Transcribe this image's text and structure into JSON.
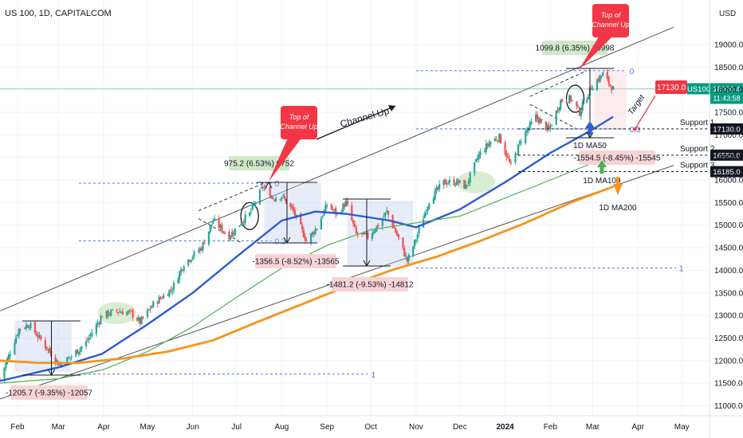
{
  "header": {
    "title": "US 100, 1D, CAPITALCOM"
  },
  "axis": {
    "currency": "USD"
  },
  "price_tag": {
    "symbol": "US100",
    "price": "18020.4",
    "countdown": "11:43:58"
  },
  "colors": {
    "up": "#26a69a",
    "down": "#ef5350",
    "ma50": "#2a5bd7",
    "ma100": "#4caf50",
    "ma200": "#f7931a",
    "callout": "#f23645"
  },
  "chart_data": {
    "type": "candlestick",
    "title": "US 100, 1D, CAPITALCOM",
    "ylabel": "USD",
    "ylim": [
      10900,
      19700
    ],
    "xlim": [
      "2023-01-20",
      "2024-05-20"
    ],
    "x_ticks": [
      {
        "label": "Feb",
        "date": "2023-02-01"
      },
      {
        "label": "Mar",
        "date": "2023-03-01"
      },
      {
        "label": "Apr",
        "date": "2023-04-01"
      },
      {
        "label": "May",
        "date": "2023-05-01"
      },
      {
        "label": "Jun",
        "date": "2023-06-01"
      },
      {
        "label": "Jul",
        "date": "2023-07-01"
      },
      {
        "label": "Aug",
        "date": "2023-08-01"
      },
      {
        "label": "Sep",
        "date": "2023-09-01"
      },
      {
        "label": "Oct",
        "date": "2023-10-01"
      },
      {
        "label": "Nov",
        "date": "2023-11-01"
      },
      {
        "label": "Dec",
        "date": "2023-12-01"
      },
      {
        "label": "2024",
        "date": "2024-01-01"
      },
      {
        "label": "Feb",
        "date": "2024-02-01"
      },
      {
        "label": "Mar",
        "date": "2024-03-01"
      },
      {
        "label": "Apr",
        "date": "2024-04-01"
      },
      {
        "label": "May",
        "date": "2024-05-01"
      }
    ],
    "y_ticks": [
      11000,
      11500,
      12000,
      12500,
      13000,
      13500,
      14000,
      14500,
      15000,
      15500,
      16000,
      16500,
      17000,
      17500,
      18000,
      18500,
      19000
    ],
    "price_path": [
      [
        "2023-01-20",
        11600
      ],
      [
        "2023-02-02",
        12700
      ],
      [
        "2023-02-09",
        12800
      ],
      [
        "2023-02-16",
        12500
      ],
      [
        "2023-02-23",
        12200
      ],
      [
        "2023-03-02",
        11900
      ],
      [
        "2023-03-10",
        12100
      ],
      [
        "2023-03-20",
        12400
      ],
      [
        "2023-03-31",
        13000
      ],
      [
        "2023-04-10",
        13100
      ],
      [
        "2023-04-20",
        13050
      ],
      [
        "2023-04-26",
        12850
      ],
      [
        "2023-05-05",
        13250
      ],
      [
        "2023-05-18",
        13600
      ],
      [
        "2023-05-26",
        14150
      ],
      [
        "2023-06-07",
        14500
      ],
      [
        "2023-06-15",
        15100
      ],
      [
        "2023-06-26",
        14750
      ],
      [
        "2023-07-05",
        15100
      ],
      [
        "2023-07-10",
        15250
      ],
      [
        "2023-07-19",
        15850
      ],
      [
        "2023-07-26",
        15600
      ],
      [
        "2023-08-01",
        15650
      ],
      [
        "2023-08-09",
        15300
      ],
      [
        "2023-08-18",
        14650
      ],
      [
        "2023-08-25",
        14950
      ],
      [
        "2023-09-01",
        15450
      ],
      [
        "2023-09-08",
        15250
      ],
      [
        "2023-09-14",
        15500
      ],
      [
        "2023-09-21",
        14800
      ],
      [
        "2023-09-29",
        14750
      ],
      [
        "2023-10-06",
        15000
      ],
      [
        "2023-10-12",
        15300
      ],
      [
        "2023-10-20",
        14700
      ],
      [
        "2023-10-26",
        14200
      ],
      [
        "2023-11-01",
        14700
      ],
      [
        "2023-11-10",
        15550
      ],
      [
        "2023-11-20",
        15950
      ],
      [
        "2023-11-30",
        15950
      ],
      [
        "2023-12-05",
        15850
      ],
      [
        "2023-12-14",
        16550
      ],
      [
        "2023-12-22",
        16850
      ],
      [
        "2023-12-28",
        16950
      ],
      [
        "2024-01-05",
        16300
      ],
      [
        "2024-01-12",
        16900
      ],
      [
        "2024-01-22",
        17400
      ],
      [
        "2024-01-31",
        17100
      ],
      [
        "2024-02-08",
        17750
      ],
      [
        "2024-02-15",
        17800
      ],
      [
        "2024-02-21",
        17500
      ],
      [
        "2024-02-29",
        18050
      ],
      [
        "2024-03-08",
        18350
      ],
      [
        "2024-03-13",
        18100
      ],
      [
        "2024-03-15",
        18020
      ]
    ],
    "series": [
      {
        "name": "1D MA50",
        "color": "#2a5bd7",
        "points": [
          [
            "2023-01-20",
            11550
          ],
          [
            "2023-03-01",
            11850
          ],
          [
            "2023-03-31",
            12150
          ],
          [
            "2023-05-01",
            12800
          ],
          [
            "2023-06-01",
            13500
          ],
          [
            "2023-07-01",
            14300
          ],
          [
            "2023-08-01",
            15100
          ],
          [
            "2023-08-24",
            15300
          ],
          [
            "2023-09-14",
            15250
          ],
          [
            "2023-10-14",
            15100
          ],
          [
            "2023-11-01",
            14950
          ],
          [
            "2023-12-01",
            15350
          ],
          [
            "2024-01-01",
            15950
          ],
          [
            "2024-02-01",
            16600
          ],
          [
            "2024-02-29",
            17100
          ],
          [
            "2024-03-15",
            17400
          ]
        ]
      },
      {
        "name": "1D MA100",
        "color": "#4caf50",
        "points": [
          [
            "2023-01-20",
            11500
          ],
          [
            "2023-03-01",
            11600
          ],
          [
            "2023-04-01",
            11800
          ],
          [
            "2023-05-01",
            12200
          ],
          [
            "2023-06-01",
            12750
          ],
          [
            "2023-07-01",
            13400
          ],
          [
            "2023-08-01",
            14050
          ],
          [
            "2023-09-01",
            14550
          ],
          [
            "2023-10-01",
            14900
          ],
          [
            "2023-11-01",
            15050
          ],
          [
            "2023-12-01",
            15200
          ],
          [
            "2024-01-01",
            15600
          ],
          [
            "2024-02-01",
            16000
          ],
          [
            "2024-02-24",
            16300
          ],
          [
            "2024-03-15",
            16550
          ]
        ]
      },
      {
        "name": "1D MA200",
        "color": "#f7931a",
        "points": [
          [
            "2023-01-20",
            12000
          ],
          [
            "2023-02-15",
            11950
          ],
          [
            "2023-03-15",
            11950
          ],
          [
            "2023-04-15",
            12050
          ],
          [
            "2023-05-15",
            12200
          ],
          [
            "2023-06-15",
            12450
          ],
          [
            "2023-07-15",
            12850
          ],
          [
            "2023-08-15",
            13250
          ],
          [
            "2023-09-15",
            13650
          ],
          [
            "2023-10-15",
            14000
          ],
          [
            "2023-11-15",
            14300
          ],
          [
            "2023-12-15",
            14650
          ],
          [
            "2024-01-15",
            15050
          ],
          [
            "2024-02-15",
            15500
          ],
          [
            "2024-03-15",
            15850
          ]
        ]
      }
    ],
    "channel_up": {
      "label": "Channel Up",
      "upper": [
        [
          "2023-01-20",
          13100
        ],
        [
          "2024-04-01",
          19050
        ]
      ],
      "lower": [
        [
          "2023-01-20",
          11150
        ],
        [
          "2024-04-01",
          16050
        ]
      ]
    },
    "support_levels": [
      {
        "label": "Support 1",
        "value": 17130,
        "tag": "17130.0"
      },
      {
        "label": "Support 2",
        "value": 16550,
        "tag": "16550.0"
      },
      {
        "label": "Support 3",
        "value": 16185,
        "tag": "16185.0"
      }
    ],
    "target": {
      "label": "Target",
      "value": 17130,
      "tag": "17130.0",
      "date": "2024-04-01"
    },
    "fibonacci": [
      {
        "label": "0",
        "value": 15930,
        "from": "2023-03-15",
        "to": "2023-07-25"
      },
      {
        "label": "0.3",
        "value": 14650,
        "from": "2023-03-15",
        "to": "2023-07-25"
      },
      {
        "label": "1",
        "value": 11700,
        "from": "2023-03-15",
        "to": "2023-09-29"
      },
      {
        "label": "0",
        "value": 18420,
        "from": "2023-11-01",
        "to": "2024-03-24"
      },
      {
        "label": "0.3",
        "value": 17130,
        "from": "2023-11-01",
        "to": "2024-03-24"
      },
      {
        "label": "1",
        "value": 14050,
        "from": "2023-11-01",
        "to": "2024-04-27"
      }
    ],
    "annotations": [
      {
        "kind": "drop",
        "text": "-1205.7 (-9.35%) -12057"
      },
      {
        "kind": "rise",
        "text": "975.2 (6.53%) 9752"
      },
      {
        "kind": "drop",
        "text": "-1356.5 (-8.52%) -13565"
      },
      {
        "kind": "drop",
        "text": "-1481.2 (-9.53%) -14812"
      },
      {
        "kind": "rise",
        "text": "1099.8 (6.35%) 10998"
      },
      {
        "kind": "drop",
        "text": "-1554.5 (-8.45%) -15545"
      },
      {
        "kind": "callout",
        "text": "Top of Channel Up"
      },
      {
        "kind": "callout",
        "text": "Top of Channel Up"
      },
      {
        "kind": "label",
        "text": "1D MA50"
      },
      {
        "kind": "label",
        "text": "1D MA100"
      },
      {
        "kind": "label",
        "text": "1D MA200"
      }
    ],
    "grid": true
  }
}
